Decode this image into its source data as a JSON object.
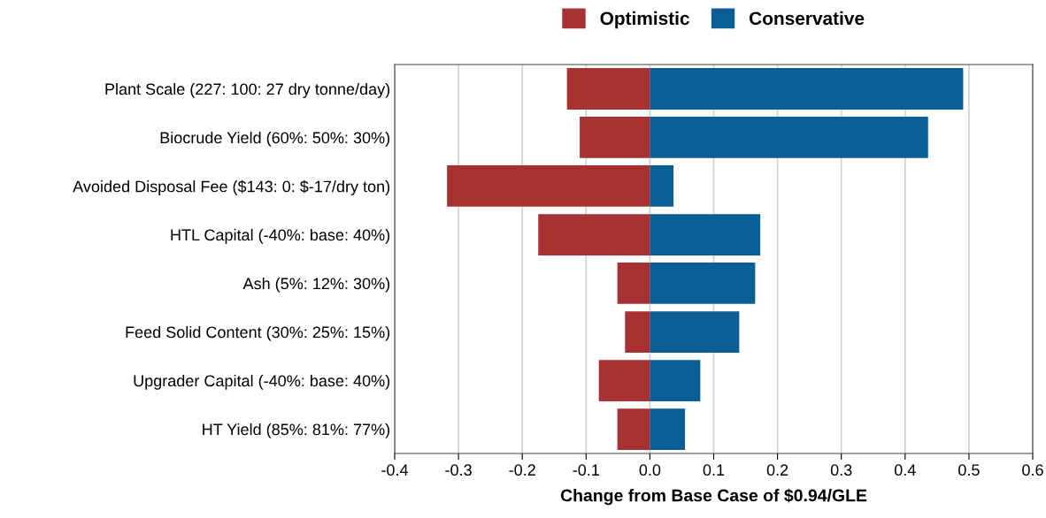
{
  "chart_data": {
    "type": "bar",
    "orientation": "horizontal",
    "xlabel": "Change from Base Case of $0.94/GLE",
    "categories": [
      "Plant Scale (227: 100: 27 dry tonne/day)",
      "Biocrude Yield (60%: 50%: 30%)",
      "Avoided Disposal Fee ($143: 0: $-17/dry ton)",
      "HTL Capital (-40%: base: 40%)",
      "Ash (5%: 12%: 30%)",
      "Feed Solid Content (30%: 25%: 15%)",
      "Upgrader Capital (-40%: base: 40%)",
      "HT Yield (85%: 81%: 77%)"
    ],
    "series": [
      {
        "name": "Optimistic",
        "color": "#a83232",
        "values": [
          -0.13,
          -0.11,
          -0.318,
          -0.175,
          -0.051,
          -0.039,
          -0.08,
          -0.051
        ]
      },
      {
        "name": "Conservative",
        "color": "#0b5e94",
        "values": [
          0.491,
          0.436,
          0.037,
          0.173,
          0.165,
          0.14,
          0.079,
          0.055
        ]
      }
    ],
    "xlim": [
      -0.4,
      0.6
    ],
    "xticks": [
      -0.4,
      -0.3,
      -0.2,
      -0.1,
      {
        "value": 0,
        "label": "0.0"
      },
      0.1,
      0.2,
      0.3,
      0.4,
      0.5,
      0.6
    ],
    "stacked": true,
    "grid": "x",
    "legend": "top"
  }
}
